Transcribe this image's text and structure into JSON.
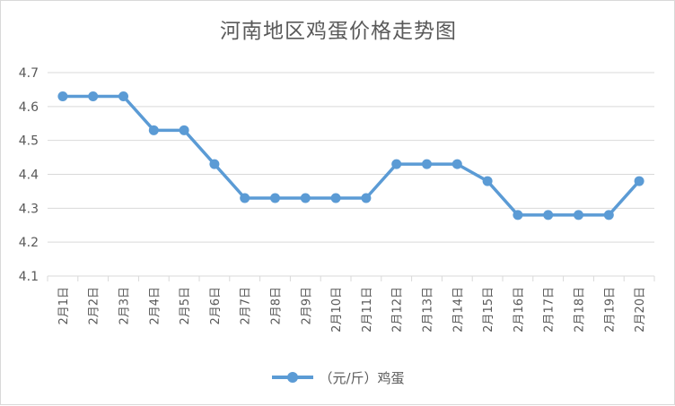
{
  "chart_data": {
    "type": "line",
    "title": "河南地区鸡蛋价格走势图",
    "xlabel": "",
    "ylabel": "",
    "categories": [
      "2月1日",
      "2月2日",
      "2月3日",
      "2月4日",
      "2月5日",
      "2月6日",
      "2月7日",
      "2月8日",
      "2月9日",
      "2月10日",
      "2月11日",
      "2月12日",
      "2月13日",
      "2月14日",
      "2月15日",
      "2月16日",
      "2月17日",
      "2月18日",
      "2月19日",
      "2月20日"
    ],
    "series": [
      {
        "name": "（元/斤）鸡蛋",
        "values": [
          4.63,
          4.63,
          4.63,
          4.53,
          4.53,
          4.43,
          4.33,
          4.33,
          4.33,
          4.33,
          4.33,
          4.43,
          4.43,
          4.43,
          4.38,
          4.28,
          4.28,
          4.28,
          4.28,
          4.38
        ]
      }
    ],
    "ylim": [
      4.1,
      4.7
    ],
    "yticks": [
      "4.1",
      "4.2",
      "4.3",
      "4.4",
      "4.5",
      "4.6",
      "4.7"
    ],
    "grid": true,
    "legend_position": "bottom",
    "series_color": "#5b9bd5"
  }
}
